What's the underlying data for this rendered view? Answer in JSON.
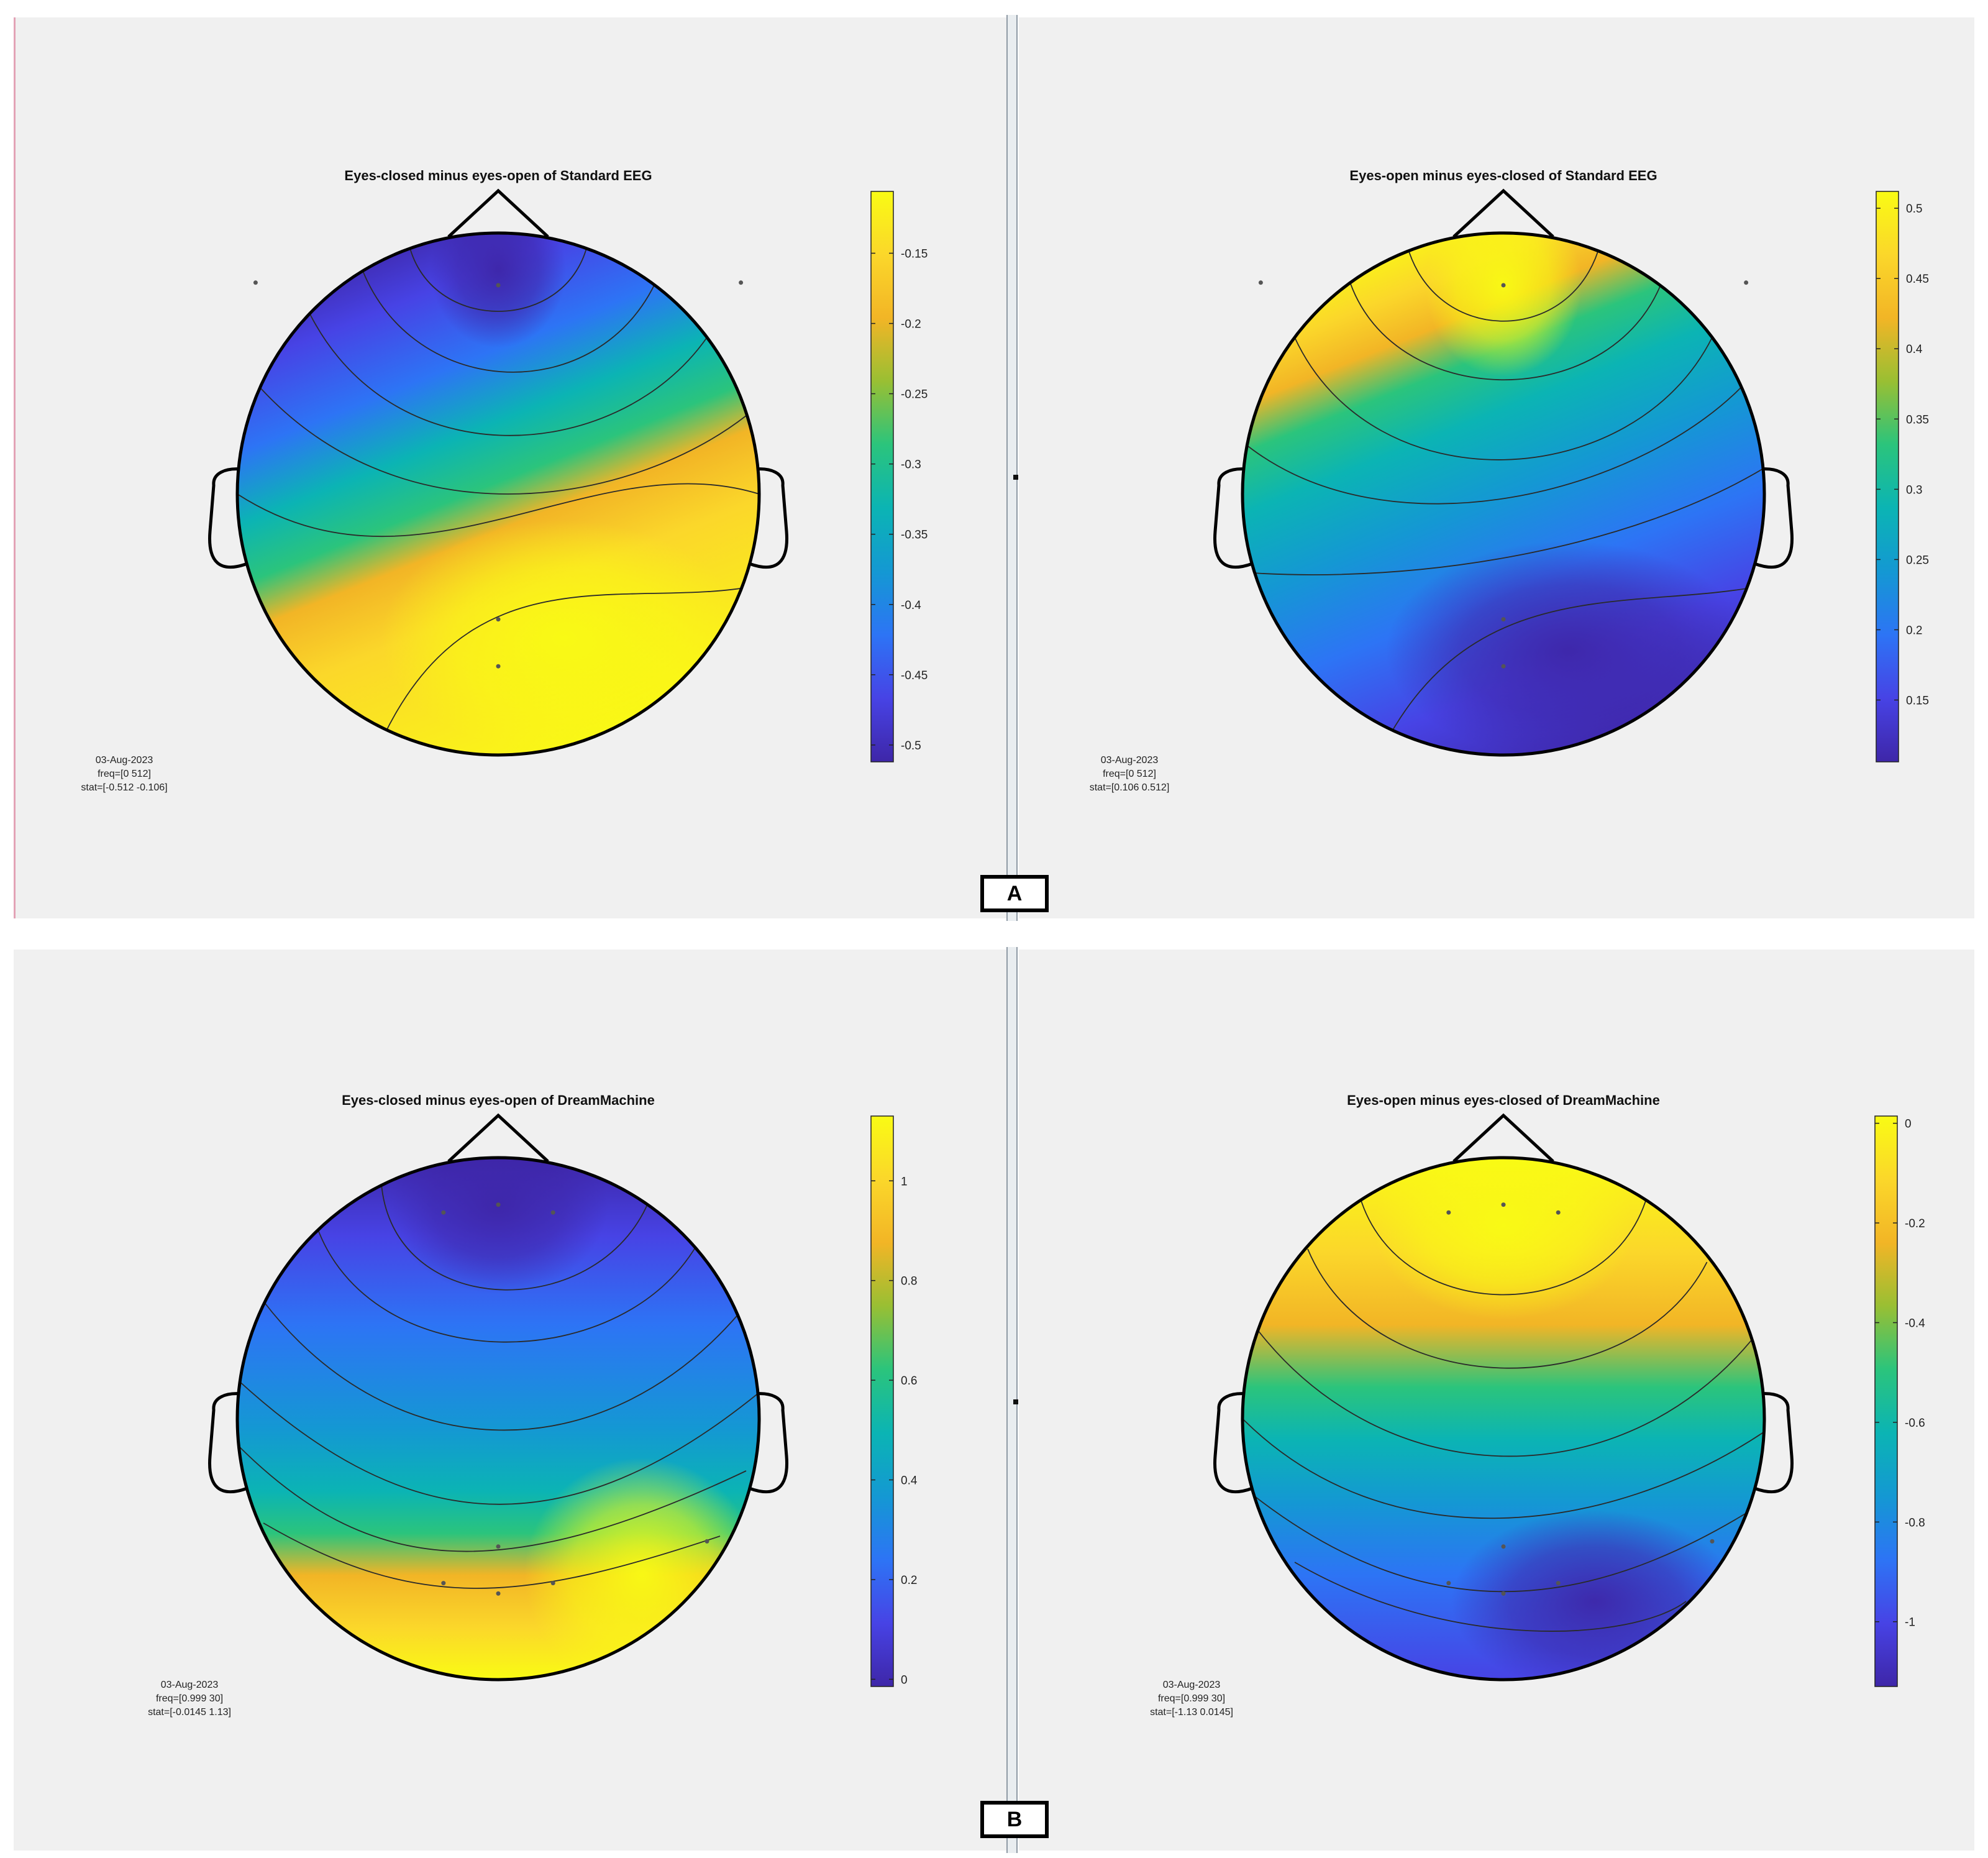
{
  "figure_labels": [
    "A",
    "B"
  ],
  "chart_data": [
    {
      "type": "heatmap",
      "title": "Eyes-closed minus eyes-open of Standard EEG",
      "info": [
        "03-Aug-2023",
        "freq=[0 512]",
        "stat=[-0.512 -0.106]"
      ],
      "colorbar": {
        "range": [
          -0.512,
          -0.106
        ],
        "ticks": [
          -0.15,
          -0.2,
          -0.25,
          -0.3,
          -0.35,
          -0.4,
          -0.45,
          -0.5
        ],
        "tick_labels": [
          "-0.15",
          "-0.2",
          "-0.25",
          "-0.3",
          "-0.35",
          "-0.4",
          "-0.45",
          "-0.5"
        ],
        "colormap": "parula"
      },
      "map": {
        "high_region": "posterior-right",
        "low_region": "frontal"
      },
      "electrodes": [
        [
          0,
          0.8
        ],
        [
          -0.93,
          0.81
        ],
        [
          0.93,
          0.81
        ],
        [
          0,
          -0.48
        ],
        [
          0,
          -0.66
        ]
      ]
    },
    {
      "type": "heatmap",
      "title": "Eyes-open minus eyes-closed of Standard EEG",
      "info": [
        "03-Aug-2023",
        "freq=[0 512]",
        "stat=[0.106 0.512]"
      ],
      "colorbar": {
        "range": [
          0.106,
          0.512
        ],
        "ticks": [
          0.5,
          0.45,
          0.4,
          0.35,
          0.3,
          0.25,
          0.2,
          0.15
        ],
        "tick_labels": [
          "0.5",
          "0.45",
          "0.4",
          "0.35",
          "0.3",
          "0.25",
          "0.2",
          "0.15"
        ],
        "colormap": "parula"
      },
      "map": {
        "high_region": "frontal",
        "low_region": "posterior-right"
      },
      "electrodes": [
        [
          0,
          0.8
        ],
        [
          -0.93,
          0.81
        ],
        [
          0.93,
          0.81
        ],
        [
          0,
          -0.48
        ],
        [
          0,
          -0.66
        ]
      ]
    },
    {
      "type": "heatmap",
      "title": "Eyes-closed minus eyes-open of DreamMachine",
      "info": [
        "03-Aug-2023",
        "freq=[0.999 30]",
        "stat=[-0.0145 1.13]"
      ],
      "colorbar": {
        "range": [
          -0.0145,
          1.13
        ],
        "ticks": [
          1,
          0.8,
          0.6,
          0.4,
          0.2,
          0
        ],
        "tick_labels": [
          "1",
          "0.8",
          "0.6",
          "0.4",
          "0.2",
          "0"
        ],
        "colormap": "parula"
      },
      "map": {
        "high_region": "posterior",
        "low_region": "frontal"
      },
      "electrodes": [
        [
          -0.21,
          0.79
        ],
        [
          0,
          0.82
        ],
        [
          0.21,
          0.79
        ],
        [
          0,
          -0.49
        ],
        [
          -0.21,
          -0.63
        ],
        [
          0,
          -0.67
        ],
        [
          0.21,
          -0.63
        ],
        [
          0.8,
          -0.47
        ]
      ]
    },
    {
      "type": "heatmap",
      "title": "Eyes-open minus eyes-closed of DreamMachine",
      "info": [
        "03-Aug-2023",
        "freq=[0.999 30]",
        "stat=[-1.13 0.0145]"
      ],
      "colorbar": {
        "range": [
          -1.13,
          0.0145
        ],
        "ticks": [
          0,
          -0.2,
          -0.4,
          -0.6,
          -0.8,
          -1
        ],
        "tick_labels": [
          "0",
          "-0.2",
          "-0.4",
          "-0.6",
          "-0.8",
          "-1"
        ],
        "colormap": "parula"
      },
      "map": {
        "high_region": "frontal",
        "low_region": "posterior-right"
      },
      "electrodes": [
        [
          -0.21,
          0.79
        ],
        [
          0,
          0.82
        ],
        [
          0.21,
          0.79
        ],
        [
          0,
          -0.49
        ],
        [
          -0.21,
          -0.63
        ],
        [
          0,
          -0.67
        ],
        [
          0.21,
          -0.63
        ],
        [
          0.8,
          -0.47
        ]
      ]
    }
  ]
}
